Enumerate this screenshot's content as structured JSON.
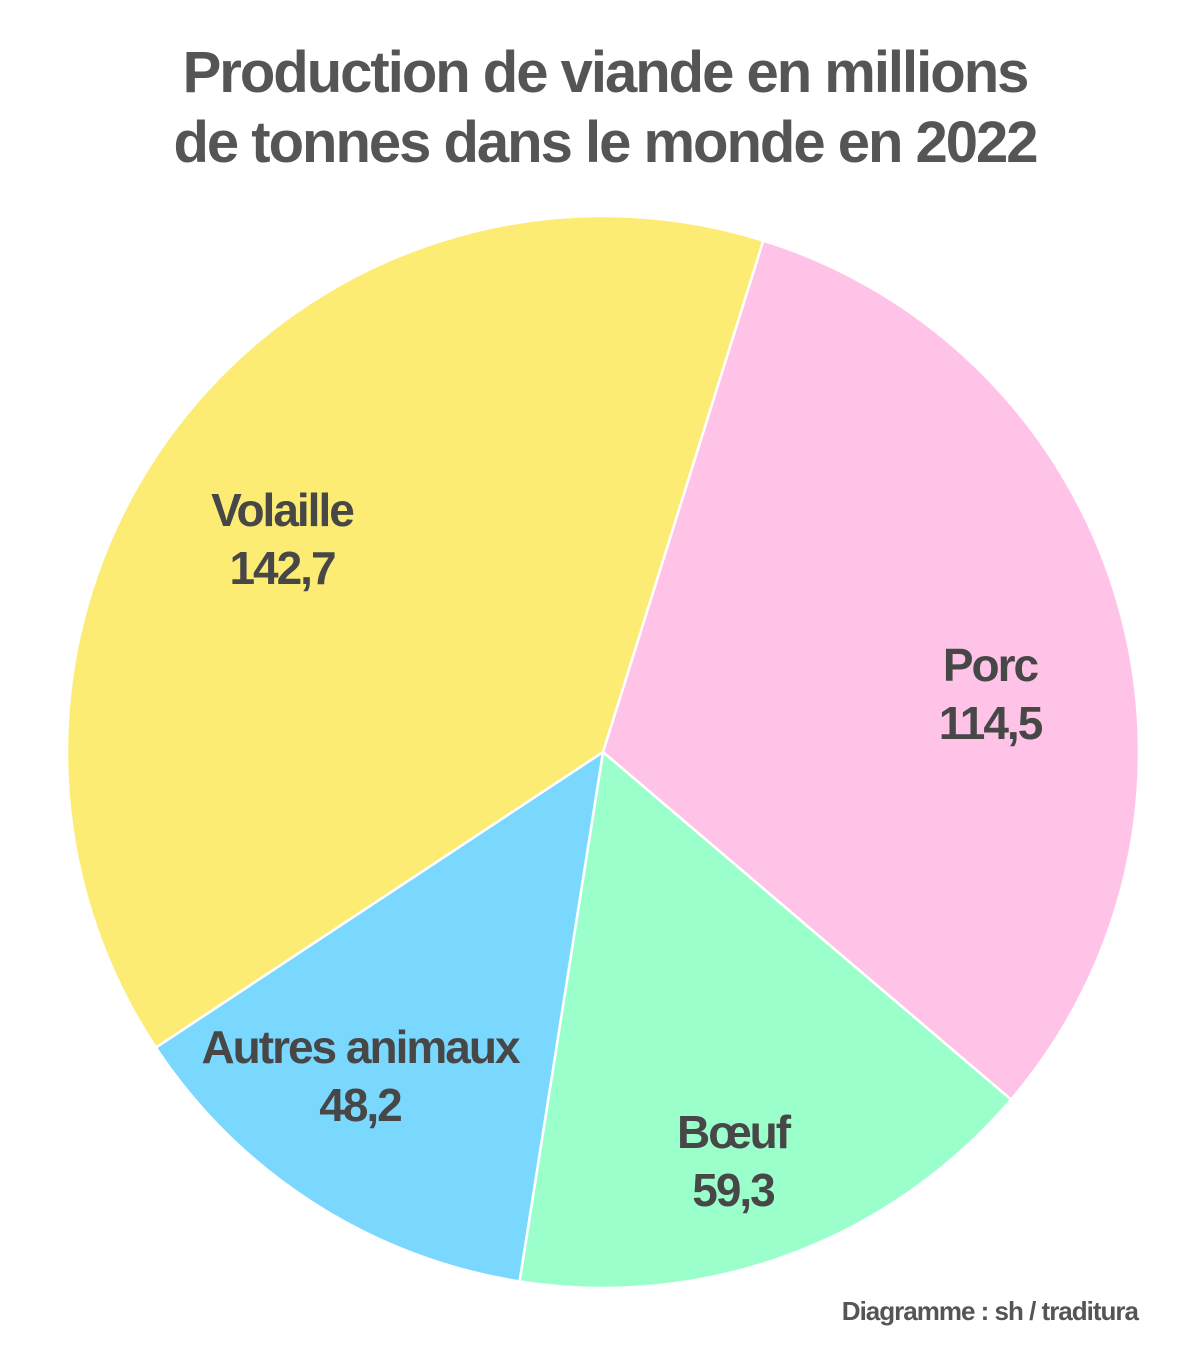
{
  "chart_data": {
    "type": "pie",
    "title_lines": [
      "Production de viande en millions",
      "de tonnes dans le monde en 2022"
    ],
    "unit": "millions de tonnes",
    "slices": [
      {
        "label": "Porc",
        "value": 114.5,
        "value_text": "114,5",
        "color": "#FFC3E8"
      },
      {
        "label": "Bœuf",
        "value": 59.3,
        "value_text": "59,3",
        "color": "#9BFFCC"
      },
      {
        "label": "Autres animaux",
        "value": 48.2,
        "value_text": "48,2",
        "color": "#7AD8FF"
      },
      {
        "label": "Volaille",
        "value": 142.7,
        "value_text": "142,7",
        "color": "#FDEC74"
      }
    ],
    "credit": "Diagramme : sh / traditura"
  }
}
